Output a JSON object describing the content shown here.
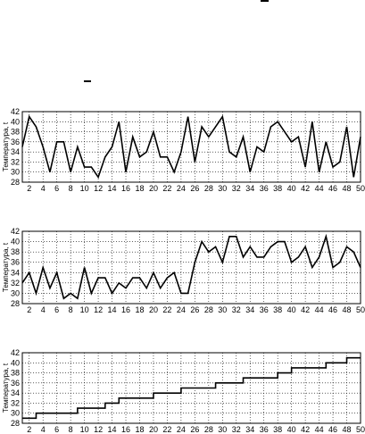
{
  "chart_data": [
    {
      "type": "line",
      "ylabel": "Температура, t",
      "xlabel": "",
      "xlim": [
        1,
        50
      ],
      "ylim": [
        28,
        42
      ],
      "yticks": [
        28,
        30,
        32,
        34,
        36,
        38,
        40,
        42
      ],
      "xticks": [
        2,
        4,
        6,
        8,
        10,
        12,
        14,
        16,
        18,
        20,
        22,
        24,
        26,
        28,
        30,
        32,
        34,
        36,
        38,
        40,
        42,
        44,
        46,
        48,
        50
      ],
      "grid": true,
      "step": false,
      "x": [
        1,
        2,
        3,
        4,
        5,
        6,
        7,
        8,
        9,
        10,
        11,
        12,
        13,
        14,
        15,
        16,
        17,
        18,
        19,
        20,
        21,
        22,
        23,
        24,
        25,
        26,
        27,
        28,
        29,
        30,
        31,
        32,
        33,
        34,
        35,
        36,
        37,
        38,
        39,
        40,
        41,
        42,
        43,
        44,
        45,
        46,
        47,
        48,
        49,
        50
      ],
      "y": [
        35,
        41,
        39,
        35,
        30,
        36,
        36,
        30,
        35,
        31,
        31,
        29,
        33,
        35,
        40,
        30,
        37,
        33,
        34,
        38,
        33,
        33,
        30,
        34,
        41,
        32,
        39,
        37,
        39,
        41,
        34,
        33,
        37,
        30,
        35,
        34,
        39,
        40,
        38,
        36,
        37,
        31,
        40,
        30,
        36,
        31,
        32,
        39,
        29,
        37
      ]
    },
    {
      "type": "line",
      "ylabel": "Температура, t",
      "xlabel": "",
      "xlim": [
        1,
        50
      ],
      "ylim": [
        28,
        42
      ],
      "yticks": [
        28,
        30,
        32,
        34,
        36,
        38,
        40,
        42
      ],
      "xticks": [
        2,
        4,
        6,
        8,
        10,
        12,
        14,
        16,
        18,
        20,
        22,
        24,
        26,
        28,
        30,
        32,
        34,
        36,
        38,
        40,
        42,
        44,
        46,
        48,
        50
      ],
      "grid": true,
      "step": false,
      "x": [
        1,
        2,
        3,
        4,
        5,
        6,
        7,
        8,
        9,
        10,
        11,
        12,
        13,
        14,
        15,
        16,
        17,
        18,
        19,
        20,
        21,
        22,
        23,
        24,
        25,
        26,
        27,
        28,
        29,
        30,
        31,
        32,
        33,
        34,
        35,
        36,
        37,
        38,
        39,
        40,
        41,
        42,
        43,
        44,
        45,
        46,
        47,
        48,
        49,
        50
      ],
      "y": [
        32,
        34,
        30,
        35,
        31,
        34,
        29,
        30,
        29,
        35,
        30,
        33,
        33,
        30,
        32,
        31,
        33,
        33,
        31,
        34,
        31,
        33,
        34,
        30,
        30,
        36,
        40,
        38,
        39,
        36,
        41,
        41,
        37,
        39,
        37,
        37,
        39,
        40,
        40,
        36,
        37,
        39,
        35,
        37,
        41,
        35,
        36,
        39,
        38,
        35
      ]
    },
    {
      "type": "line",
      "ylabel": "Температура, t",
      "xlabel": "",
      "xlim": [
        1,
        50
      ],
      "ylim": [
        28,
        42
      ],
      "yticks": [
        28,
        30,
        32,
        34,
        36,
        38,
        40,
        42
      ],
      "xticks": [
        2,
        4,
        6,
        8,
        10,
        12,
        14,
        16,
        18,
        20,
        22,
        24,
        26,
        28,
        30,
        32,
        34,
        36,
        38,
        40,
        42,
        44,
        46,
        48,
        50
      ],
      "grid": true,
      "step": true,
      "x": [
        1,
        2,
        3,
        4,
        5,
        6,
        7,
        8,
        9,
        10,
        11,
        12,
        13,
        14,
        15,
        16,
        17,
        18,
        19,
        20,
        21,
        22,
        23,
        24,
        25,
        26,
        27,
        28,
        29,
        30,
        31,
        32,
        33,
        34,
        35,
        36,
        37,
        38,
        39,
        40,
        41,
        42,
        43,
        44,
        45,
        46,
        47,
        48,
        49,
        50
      ],
      "y": [
        29,
        29,
        30,
        30,
        30,
        30,
        30,
        30,
        31,
        31,
        31,
        31,
        32,
        32,
        33,
        33,
        33,
        33,
        33,
        34,
        34,
        34,
        34,
        35,
        35,
        35,
        35,
        35,
        36,
        36,
        36,
        36,
        37,
        37,
        37,
        37,
        37,
        38,
        38,
        39,
        39,
        39,
        39,
        39,
        40,
        40,
        40,
        41,
        41,
        41
      ]
    }
  ]
}
